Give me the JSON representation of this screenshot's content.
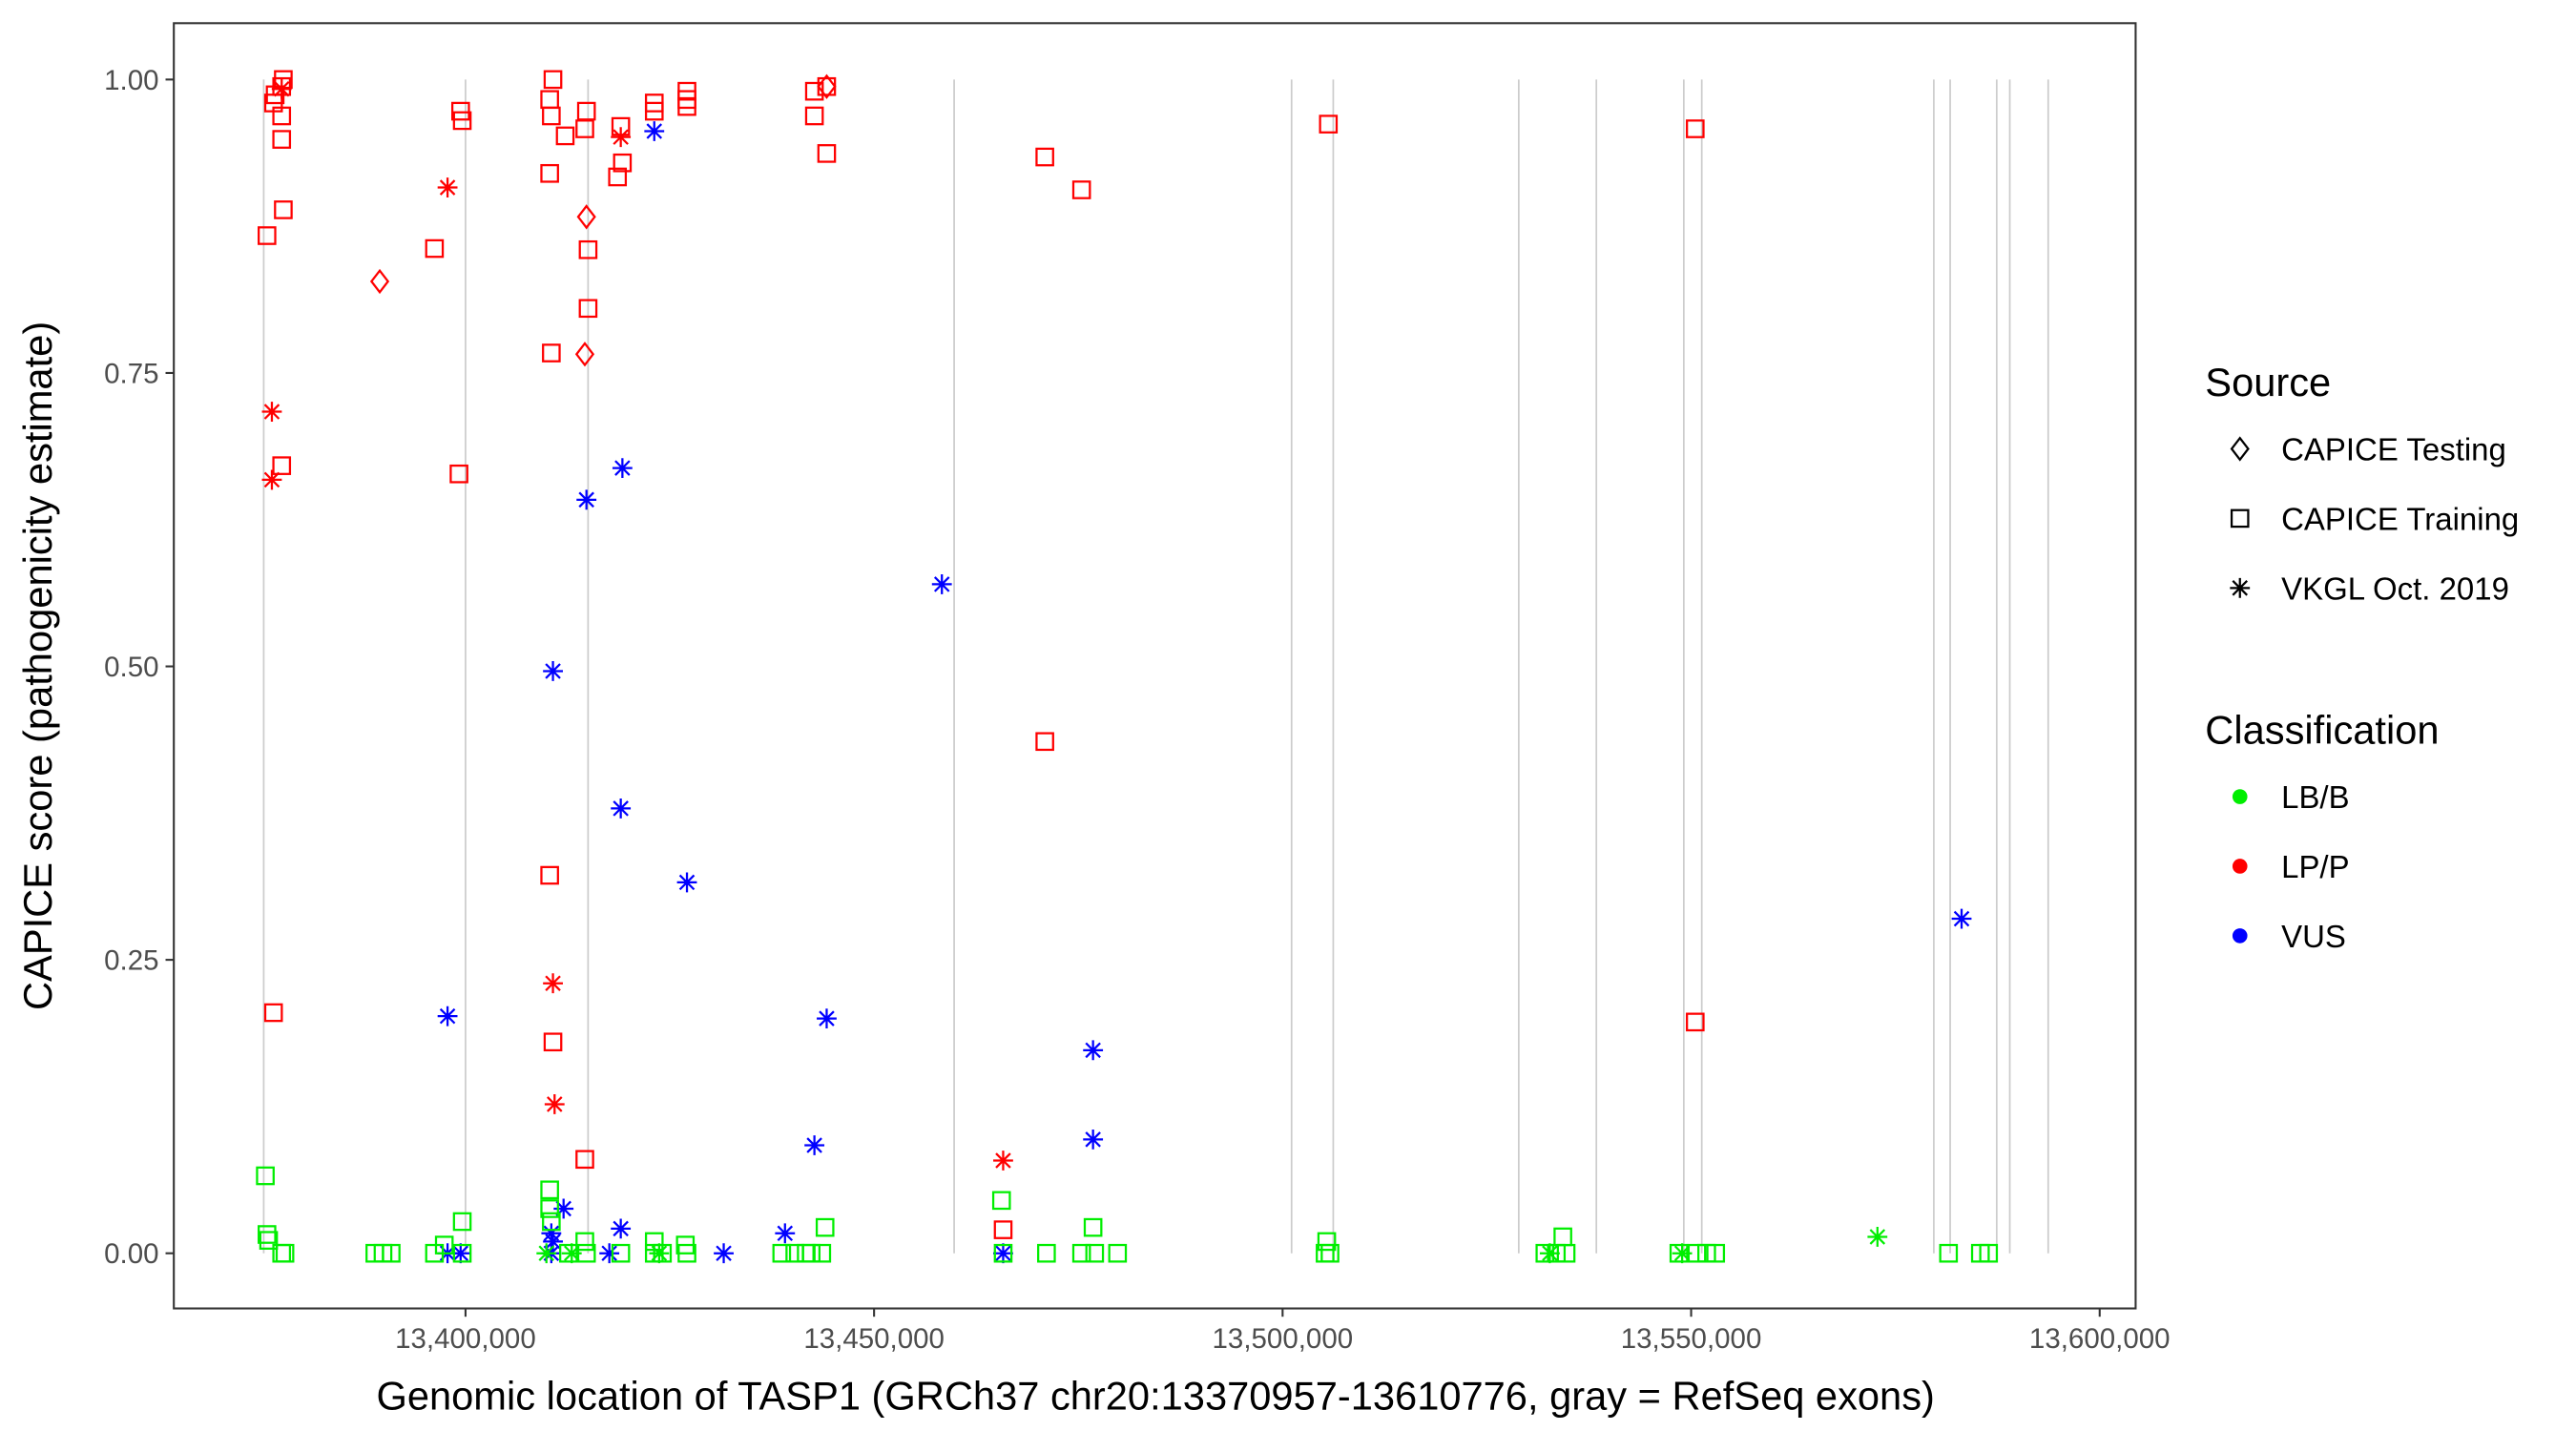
{
  "chart_data": {
    "type": "scatter",
    "xlabel": "Genomic location of TASP1 (GRCh37 chr20:13370957-13610776, gray = RefSeq exons)",
    "ylabel": "CAPICE score (pathogenicity estimate)",
    "xlim": [
      13364300,
      13604400
    ],
    "ylim": [
      -0.047,
      1.048
    ],
    "x_ticks": [
      13400000,
      13450000,
      13500000,
      13550000,
      13600000
    ],
    "x_tick_labels": [
      "13,400,000",
      "13,450,000",
      "13,500,000",
      "13,550,000",
      "13,600,000"
    ],
    "y_ticks": [
      0,
      0.25,
      0.5,
      0.75,
      1.0
    ],
    "y_tick_labels": [
      "0.00",
      "0.25",
      "0.50",
      "0.75",
      "1.00"
    ],
    "grid": false,
    "exon_lines": [
      13375300,
      13400000,
      13415000,
      13459800,
      13501100,
      13506200,
      13528900,
      13538400,
      13549100,
      13551300,
      13579700,
      13581700,
      13587400,
      13589000,
      13593700
    ],
    "exon_line_color": "#cccccc",
    "legend_placement": "right",
    "legend": {
      "source_title": "Source",
      "sources": [
        {
          "label": "CAPICE Testing",
          "shape": "diamond"
        },
        {
          "label": "CAPICE Training",
          "shape": "square"
        },
        {
          "label": "VKGL Oct. 2019",
          "shape": "asterisk"
        }
      ],
      "class_title": "Classification",
      "classes": [
        {
          "label": "LB/B",
          "color": "#00EE00"
        },
        {
          "label": "LP/P",
          "color": "#FF0000"
        },
        {
          "label": "VUS",
          "color": "#0000FF"
        }
      ]
    },
    "point_columns": [
      "x",
      "y",
      "source",
      "classification"
    ],
    "points": [
      [
        13375700,
        0.867,
        "CAPICE Training",
        "LP/P"
      ],
      [
        13376500,
        0.98,
        "CAPICE Training",
        "LP/P"
      ],
      [
        13376700,
        0.987,
        "CAPICE Training",
        "LP/P"
      ],
      [
        13377500,
        0.994,
        "CAPICE Training",
        "LP/P"
      ],
      [
        13377700,
        1.0,
        "CAPICE Training",
        "LP/P"
      ],
      [
        13377500,
        0.969,
        "CAPICE Training",
        "LP/P"
      ],
      [
        13377500,
        0.949,
        "CAPICE Training",
        "LP/P"
      ],
      [
        13377700,
        0.889,
        "CAPICE Training",
        "LP/P"
      ],
      [
        13377500,
        0.671,
        "CAPICE Training",
        "LP/P"
      ],
      [
        13376500,
        0.205,
        "CAPICE Training",
        "LP/P"
      ],
      [
        13396200,
        0.856,
        "CAPICE Training",
        "LP/P"
      ],
      [
        13399400,
        0.973,
        "CAPICE Training",
        "LP/P"
      ],
      [
        13399600,
        0.965,
        "CAPICE Training",
        "LP/P"
      ],
      [
        13399200,
        0.664,
        "CAPICE Training",
        "LP/P"
      ],
      [
        13410700,
        1.0,
        "CAPICE Training",
        "LP/P"
      ],
      [
        13410300,
        0.983,
        "CAPICE Training",
        "LP/P"
      ],
      [
        13410500,
        0.969,
        "CAPICE Training",
        "LP/P"
      ],
      [
        13410300,
        0.92,
        "CAPICE Training",
        "LP/P"
      ],
      [
        13410500,
        0.767,
        "CAPICE Training",
        "LP/P"
      ],
      [
        13410300,
        0.322,
        "CAPICE Training",
        "LP/P"
      ],
      [
        13410700,
        0.18,
        "CAPICE Training",
        "LP/P"
      ],
      [
        13414600,
        0.08,
        "CAPICE Training",
        "LP/P"
      ],
      [
        13412200,
        0.952,
        "CAPICE Training",
        "LP/P"
      ],
      [
        13414800,
        0.973,
        "CAPICE Training",
        "LP/P"
      ],
      [
        13414600,
        0.958,
        "CAPICE Training",
        "LP/P"
      ],
      [
        13415000,
        0.855,
        "CAPICE Training",
        "LP/P"
      ],
      [
        13415000,
        0.805,
        "CAPICE Training",
        "LP/P"
      ],
      [
        13418600,
        0.917,
        "CAPICE Training",
        "LP/P"
      ],
      [
        13419200,
        0.929,
        "CAPICE Training",
        "LP/P"
      ],
      [
        13419000,
        0.96,
        "CAPICE Training",
        "LP/P"
      ],
      [
        13423100,
        0.98,
        "CAPICE Training",
        "LP/P"
      ],
      [
        13423100,
        0.973,
        "CAPICE Training",
        "LP/P"
      ],
      [
        13427100,
        0.99,
        "CAPICE Training",
        "LP/P"
      ],
      [
        13427100,
        0.983,
        "CAPICE Training",
        "LP/P"
      ],
      [
        13427100,
        0.977,
        "CAPICE Training",
        "LP/P"
      ],
      [
        13442700,
        0.99,
        "CAPICE Training",
        "LP/P"
      ],
      [
        13442700,
        0.969,
        "CAPICE Training",
        "LP/P"
      ],
      [
        13444200,
        0.937,
        "CAPICE Training",
        "LP/P"
      ],
      [
        13444200,
        0.994,
        "CAPICE Training",
        "LP/P"
      ],
      [
        13465800,
        0.02,
        "CAPICE Training",
        "LP/P"
      ],
      [
        13470900,
        0.934,
        "CAPICE Training",
        "LP/P"
      ],
      [
        13470900,
        0.436,
        "CAPICE Training",
        "LP/P"
      ],
      [
        13475400,
        0.906,
        "CAPICE Training",
        "LP/P"
      ],
      [
        13505600,
        0.962,
        "CAPICE Training",
        "LP/P"
      ],
      [
        13550500,
        0.958,
        "CAPICE Training",
        "LP/P"
      ],
      [
        13550500,
        0.197,
        "CAPICE Training",
        "LP/P"
      ],
      [
        13389500,
        0.828,
        "CAPICE Testing",
        "LP/P"
      ],
      [
        13414800,
        0.883,
        "CAPICE Testing",
        "LP/P"
      ],
      [
        13414600,
        0.766,
        "CAPICE Testing",
        "LP/P"
      ],
      [
        13444200,
        0.994,
        "CAPICE Testing",
        "LP/P"
      ],
      [
        13377500,
        0.992,
        "VKGL Oct. 2019",
        "LP/P"
      ],
      [
        13376300,
        0.717,
        "VKGL Oct. 2019",
        "LP/P"
      ],
      [
        13376300,
        0.659,
        "VKGL Oct. 2019",
        "LP/P"
      ],
      [
        13397800,
        0.908,
        "VKGL Oct. 2019",
        "LP/P"
      ],
      [
        13419000,
        0.951,
        "VKGL Oct. 2019",
        "LP/P"
      ],
      [
        13410700,
        0.23,
        "VKGL Oct. 2019",
        "LP/P"
      ],
      [
        13410900,
        0.127,
        "VKGL Oct. 2019",
        "LP/P"
      ],
      [
        13465800,
        0.079,
        "VKGL Oct. 2019",
        "LP/P"
      ],
      [
        13423100,
        0.956,
        "VKGL Oct. 2019",
        "VUS"
      ],
      [
        13419200,
        0.669,
        "VKGL Oct. 2019",
        "VUS"
      ],
      [
        13414800,
        0.642,
        "VKGL Oct. 2019",
        "VUS"
      ],
      [
        13458300,
        0.57,
        "VKGL Oct. 2019",
        "VUS"
      ],
      [
        13410700,
        0.496,
        "VKGL Oct. 2019",
        "VUS"
      ],
      [
        13419000,
        0.379,
        "VKGL Oct. 2019",
        "VUS"
      ],
      [
        13427100,
        0.316,
        "VKGL Oct. 2019",
        "VUS"
      ],
      [
        13397800,
        0.202,
        "VKGL Oct. 2019",
        "VUS"
      ],
      [
        13444200,
        0.2,
        "VKGL Oct. 2019",
        "VUS"
      ],
      [
        13583100,
        0.285,
        "VKGL Oct. 2019",
        "VUS"
      ],
      [
        13476800,
        0.173,
        "VKGL Oct. 2019",
        "VUS"
      ],
      [
        13476800,
        0.097,
        "VKGL Oct. 2019",
        "VUS"
      ],
      [
        13442700,
        0.092,
        "VKGL Oct. 2019",
        "VUS"
      ],
      [
        13412000,
        0.038,
        "VKGL Oct. 2019",
        "VUS"
      ],
      [
        13419000,
        0.021,
        "VKGL Oct. 2019",
        "VUS"
      ],
      [
        13439100,
        0.017,
        "VKGL Oct. 2019",
        "VUS"
      ],
      [
        13410500,
        0.017,
        "VKGL Oct. 2019",
        "VUS"
      ],
      [
        13410700,
        0.01,
        "VKGL Oct. 2019",
        "VUS"
      ],
      [
        13410500,
        0.0,
        "VKGL Oct. 2019",
        "VUS"
      ],
      [
        13397800,
        0.0,
        "VKGL Oct. 2019",
        "VUS"
      ],
      [
        13399400,
        0.0,
        "VKGL Oct. 2019",
        "VUS"
      ],
      [
        13417600,
        0.0,
        "VKGL Oct. 2019",
        "VUS"
      ],
      [
        13431600,
        0.0,
        "VKGL Oct. 2019",
        "VUS"
      ],
      [
        13465800,
        0.0,
        "VKGL Oct. 2019",
        "VUS"
      ],
      [
        13375500,
        0.066,
        "CAPICE Training",
        "LB/B"
      ],
      [
        13375700,
        0.016,
        "CAPICE Training",
        "LB/B"
      ],
      [
        13375900,
        0.011,
        "CAPICE Training",
        "LB/B"
      ],
      [
        13377500,
        0.0,
        "CAPICE Training",
        "LB/B"
      ],
      [
        13377900,
        0.0,
        "CAPICE Training",
        "LB/B"
      ],
      [
        13388900,
        0.0,
        "CAPICE Training",
        "LB/B"
      ],
      [
        13389900,
        0.0,
        "CAPICE Training",
        "LB/B"
      ],
      [
        13390900,
        0.0,
        "CAPICE Training",
        "LB/B"
      ],
      [
        13396200,
        0.0,
        "CAPICE Training",
        "LB/B"
      ],
      [
        13397400,
        0.007,
        "CAPICE Training",
        "LB/B"
      ],
      [
        13399600,
        0.027,
        "CAPICE Training",
        "LB/B"
      ],
      [
        13399600,
        0.0,
        "CAPICE Training",
        "LB/B"
      ],
      [
        13410300,
        0.054,
        "CAPICE Training",
        "LB/B"
      ],
      [
        13410300,
        0.038,
        "CAPICE Training",
        "LB/B"
      ],
      [
        13410500,
        0.027,
        "CAPICE Training",
        "LB/B"
      ],
      [
        13412600,
        0.0,
        "CAPICE Training",
        "LB/B"
      ],
      [
        13414600,
        0.01,
        "CAPICE Training",
        "LB/B"
      ],
      [
        13414800,
        0.0,
        "CAPICE Training",
        "LB/B"
      ],
      [
        13419000,
        0.0,
        "CAPICE Training",
        "LB/B"
      ],
      [
        13423100,
        0.01,
        "CAPICE Training",
        "LB/B"
      ],
      [
        13423100,
        0.0,
        "CAPICE Training",
        "LB/B"
      ],
      [
        13424100,
        0.0,
        "CAPICE Training",
        "LB/B"
      ],
      [
        13426900,
        0.007,
        "CAPICE Training",
        "LB/B"
      ],
      [
        13427100,
        0.0,
        "CAPICE Training",
        "LB/B"
      ],
      [
        13438700,
        0.0,
        "CAPICE Training",
        "LB/B"
      ],
      [
        13440300,
        0.0,
        "CAPICE Training",
        "LB/B"
      ],
      [
        13441700,
        0.0,
        "CAPICE Training",
        "LB/B"
      ],
      [
        13442300,
        0.0,
        "CAPICE Training",
        "LB/B"
      ],
      [
        13444000,
        0.022,
        "CAPICE Training",
        "LB/B"
      ],
      [
        13443600,
        0.0,
        "CAPICE Training",
        "LB/B"
      ],
      [
        13465800,
        0.0,
        "CAPICE Training",
        "LB/B"
      ],
      [
        13471100,
        0.0,
        "CAPICE Training",
        "LB/B"
      ],
      [
        13475400,
        0.0,
        "CAPICE Training",
        "LB/B"
      ],
      [
        13476800,
        0.022,
        "CAPICE Training",
        "LB/B"
      ],
      [
        13477000,
        0.0,
        "CAPICE Training",
        "LB/B"
      ],
      [
        13479800,
        0.0,
        "CAPICE Training",
        "LB/B"
      ],
      [
        13465600,
        0.045,
        "CAPICE Training",
        "LB/B"
      ],
      [
        13505400,
        0.01,
        "CAPICE Training",
        "LB/B"
      ],
      [
        13505200,
        0.0,
        "CAPICE Training",
        "LB/B"
      ],
      [
        13505800,
        0.0,
        "CAPICE Training",
        "LB/B"
      ],
      [
        13532100,
        0.0,
        "CAPICE Training",
        "LB/B"
      ],
      [
        13533500,
        0.0,
        "CAPICE Training",
        "LB/B"
      ],
      [
        13534300,
        0.014,
        "CAPICE Training",
        "LB/B"
      ],
      [
        13534700,
        0.0,
        "CAPICE Training",
        "LB/B"
      ],
      [
        13548500,
        0.0,
        "CAPICE Training",
        "LB/B"
      ],
      [
        13550700,
        0.0,
        "CAPICE Training",
        "LB/B"
      ],
      [
        13551900,
        0.0,
        "CAPICE Training",
        "LB/B"
      ],
      [
        13553000,
        0.0,
        "CAPICE Training",
        "LB/B"
      ],
      [
        13581500,
        0.0,
        "CAPICE Training",
        "LB/B"
      ],
      [
        13585400,
        0.0,
        "CAPICE Training",
        "LB/B"
      ],
      [
        13586400,
        0.0,
        "CAPICE Training",
        "LB/B"
      ],
      [
        13409900,
        0.0,
        "VKGL Oct. 2019",
        "LB/B"
      ],
      [
        13413000,
        0.0,
        "VKGL Oct. 2019",
        "LB/B"
      ],
      [
        13423700,
        0.0,
        "VKGL Oct. 2019",
        "LB/B"
      ],
      [
        13532700,
        0.0,
        "VKGL Oct. 2019",
        "LB/B"
      ],
      [
        13548900,
        0.0,
        "VKGL Oct. 2019",
        "LB/B"
      ],
      [
        13572800,
        0.014,
        "VKGL Oct. 2019",
        "LB/B"
      ]
    ]
  }
}
